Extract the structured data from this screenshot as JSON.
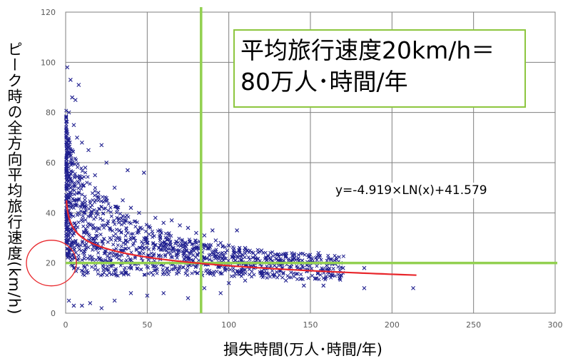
{
  "chart_data": {
    "type": "scatter",
    "title": "",
    "xlabel": "損失時間(万人･時間/年)",
    "ylabel": "ピーク時の全方向平均旅行速度(km/h)",
    "xlim": [
      0,
      300
    ],
    "ylim": [
      0,
      120
    ],
    "x_ticks": [
      "0",
      "50",
      "100",
      "150",
      "200",
      "250",
      "300"
    ],
    "y_ticks": [
      "0",
      "20",
      "40",
      "60",
      "80",
      "100",
      "120"
    ],
    "grid": true,
    "marker": "x",
    "marker_color": "#1f1f8f",
    "series": [
      {
        "points": [
          [
            1,
            98
          ],
          [
            3,
            93
          ],
          [
            4,
            86
          ],
          [
            6,
            85
          ],
          [
            8,
            91
          ],
          [
            2,
            80
          ],
          [
            5,
            75
          ],
          [
            7,
            70
          ],
          [
            10,
            68
          ],
          [
            14,
            65
          ],
          [
            22,
            67
          ],
          [
            25,
            60
          ],
          [
            38,
            57
          ],
          [
            48,
            56
          ],
          [
            12,
            58
          ],
          [
            18,
            55
          ],
          [
            30,
            50
          ],
          [
            20,
            48
          ],
          [
            35,
            45
          ],
          [
            40,
            42
          ],
          [
            45,
            40
          ],
          [
            55,
            38
          ],
          [
            60,
            36
          ],
          [
            65,
            37
          ],
          [
            70,
            35
          ],
          [
            75,
            34
          ],
          [
            80,
            32
          ],
          [
            85,
            31
          ],
          [
            90,
            33
          ],
          [
            92,
            29
          ],
          [
            95,
            28
          ],
          [
            100,
            27
          ],
          [
            105,
            33
          ],
          [
            110,
            26
          ],
          [
            115,
            24
          ],
          [
            120,
            25
          ],
          [
            125,
            22
          ],
          [
            130,
            21
          ],
          [
            135,
            23
          ],
          [
            140,
            22
          ],
          [
            145,
            21
          ],
          [
            150,
            20
          ],
          [
            155,
            24
          ],
          [
            160,
            19
          ],
          [
            165,
            20
          ],
          [
            170,
            18
          ],
          [
            183,
            18
          ],
          [
            183,
            10
          ],
          [
            213,
            10
          ],
          [
            158,
            11
          ],
          [
            146,
            11
          ],
          [
            135,
            13
          ],
          [
            120,
            15
          ],
          [
            110,
            13
          ],
          [
            100,
            12
          ],
          [
            95,
            8
          ],
          [
            85,
            10
          ],
          [
            75,
            6
          ],
          [
            60,
            8
          ],
          [
            50,
            7
          ],
          [
            40,
            8
          ],
          [
            30,
            5
          ],
          [
            22,
            2
          ],
          [
            15,
            4
          ],
          [
            10,
            3
          ],
          [
            5,
            3
          ],
          [
            2,
            5
          ],
          [
            3,
            50
          ],
          [
            4,
            60
          ],
          [
            5,
            45
          ],
          [
            8,
            52
          ],
          [
            12,
            44
          ],
          [
            16,
            40
          ],
          [
            25,
            35
          ],
          [
            33,
            33
          ],
          [
            42,
            30
          ],
          [
            50,
            28
          ],
          [
            58,
            27
          ],
          [
            66,
            26
          ],
          [
            74,
            25
          ],
          [
            82,
            24
          ],
          [
            88,
            23
          ],
          [
            96,
            22
          ],
          [
            104,
            21
          ],
          [
            112,
            20
          ],
          [
            128,
            19
          ],
          [
            142,
            18
          ]
        ],
        "color": "#1f1f8f"
      }
    ],
    "trendline": {
      "equation": "y=-4.919×LN(x)+41.579",
      "a": -4.919,
      "b": 41.579,
      "x_from": 0.5,
      "x_to": 215,
      "color": "#e8262b"
    },
    "reference_lines": {
      "x": 83,
      "y": 20,
      "color": "#92d050"
    },
    "highlight_ellipse": {
      "cx": 0,
      "cy": 20,
      "color": "#e8262b"
    }
  },
  "callout": {
    "line1": "平均旅行速度20km/h＝",
    "line2": "80万人･時間/年"
  },
  "colors": {
    "grid": "#7f7f7f",
    "axis_text": "#595959"
  }
}
